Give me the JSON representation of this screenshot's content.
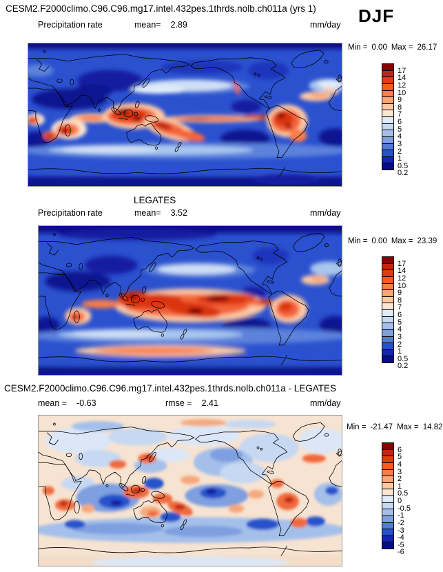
{
  "header": {
    "run_title": "CESM2.F2000climo.C96.C96.mg17.intel.432pes.1thrds.nolb.ch011a (yrs 1)",
    "season": "DJF"
  },
  "panels": [
    {
      "variable": "Precipitation rate",
      "stat1_label": "mean=",
      "stat1_value": "2.89",
      "units": "mm/day",
      "min_label": "Min =",
      "min_value": "0.00",
      "max_label": "Max =",
      "max_value": "26.17",
      "levels": [
        "17",
        "14",
        "12",
        "10",
        "9",
        "8",
        "7",
        "6",
        "5",
        "4",
        "3",
        "2",
        "1",
        "0.5",
        "0.2"
      ]
    },
    {
      "title": "LEGATES",
      "variable": "Precipitation rate",
      "stat1_label": "mean=",
      "stat1_value": "3.52",
      "units": "mm/day",
      "min_label": "Min =",
      "min_value": "0.00",
      "max_label": "Max =",
      "max_value": "23.39",
      "levels": [
        "17",
        "14",
        "12",
        "10",
        "9",
        "8",
        "7",
        "6",
        "5",
        "4",
        "3",
        "2",
        "1",
        "0.5",
        "0.2"
      ]
    },
    {
      "title": "CESM2.F2000climo.C96.C96.mg17.intel.432pes.1thrds.nolb.ch011a - LEGATES",
      "stat1_label": "mean =",
      "stat1_value": "-0.63",
      "stat2_label": "rmse =",
      "stat2_value": "2.41",
      "units": "mm/day",
      "min_label": "Min =",
      "min_value": "-21.47",
      "max_label": "Max =",
      "max_value": "14.82",
      "levels": [
        "6",
        "5",
        "4",
        "3",
        "2",
        "1",
        "0.5",
        "0",
        "-0.5",
        "-1",
        "-2",
        "-3",
        "-4",
        "-5",
        "-6"
      ]
    }
  ],
  "colorbar_colors": [
    "#8b0000",
    "#c1270e",
    "#e33b10",
    "#fa5a20",
    "#fb7d4a",
    "#fca576",
    "#fdc9a4",
    "#f9e6d3",
    "#e2ecf9",
    "#c6d8f2",
    "#a4c0ea",
    "#7e9fe0",
    "#517bd6",
    "#2653cb",
    "#1226b0",
    "#070d86"
  ],
  "chart_data": [
    {
      "type": "heatmap",
      "map_type": "global filled-contour map, cylindrical equidistant, lon 0E-360E, lat 90N-90S, coastlines overlaid",
      "title": "CESM2.F2000climo.C96.C96.mg17.intel.432pes.1thrds.nolb.ch011a (yrs 1)",
      "season": "DJF",
      "variable": "Precipitation rate",
      "units": "mm/day",
      "mean": 2.89,
      "min": 0.0,
      "max": 26.17,
      "contour_levels": [
        0.2,
        0.5,
        1,
        2,
        3,
        4,
        5,
        6,
        7,
        8,
        9,
        10,
        12,
        14,
        17
      ],
      "palette_high_to_low": [
        "#8b0000",
        "#c1270e",
        "#e33b10",
        "#fa5a20",
        "#fb7d4a",
        "#fca576",
        "#fdc9a4",
        "#f9e6d3",
        "#e2ecf9",
        "#c6d8f2",
        "#a4c0ea",
        "#7e9fe0",
        "#517bd6",
        "#2653cb",
        "#1226b0",
        "#070d86"
      ],
      "legend_position": "right"
    },
    {
      "type": "heatmap",
      "map_type": "global filled-contour map, cylindrical equidistant, lon 0E-360E, lat 90N-90S, coastlines overlaid",
      "title": "LEGATES",
      "season": "DJF",
      "variable": "Precipitation rate",
      "units": "mm/day",
      "mean": 3.52,
      "min": 0.0,
      "max": 23.39,
      "contour_levels": [
        0.2,
        0.5,
        1,
        2,
        3,
        4,
        5,
        6,
        7,
        8,
        9,
        10,
        12,
        14,
        17
      ],
      "palette_high_to_low": [
        "#8b0000",
        "#c1270e",
        "#e33b10",
        "#fa5a20",
        "#fb7d4a",
        "#fca576",
        "#fdc9a4",
        "#f9e6d3",
        "#e2ecf9",
        "#c6d8f2",
        "#a4c0ea",
        "#7e9fe0",
        "#517bd6",
        "#2653cb",
        "#1226b0",
        "#070d86"
      ],
      "legend_position": "right"
    },
    {
      "type": "heatmap",
      "map_type": "global filled-contour difference map, cylindrical equidistant, lon 0E-360E, lat 90N-90S, coastlines overlaid",
      "title": "CESM2.F2000climo.C96.C96.mg17.intel.432pes.1thrds.nolb.ch011a - LEGATES",
      "season": "DJF",
      "units": "mm/day",
      "mean": -0.63,
      "rmse": 2.41,
      "min": -21.47,
      "max": 14.82,
      "contour_levels": [
        -6,
        -5,
        -4,
        -3,
        -2,
        -1,
        -0.5,
        0,
        0.5,
        1,
        2,
        3,
        4,
        5,
        6
      ],
      "palette_high_to_low": [
        "#8b0000",
        "#c1270e",
        "#e33b10",
        "#fa5a20",
        "#fb7d4a",
        "#fca576",
        "#fdc9a4",
        "#f9e6d3",
        "#e2ecf9",
        "#c6d8f2",
        "#a4c0ea",
        "#7e9fe0",
        "#517bd6",
        "#2653cb",
        "#1226b0",
        "#070d86"
      ],
      "legend_position": "right"
    }
  ]
}
